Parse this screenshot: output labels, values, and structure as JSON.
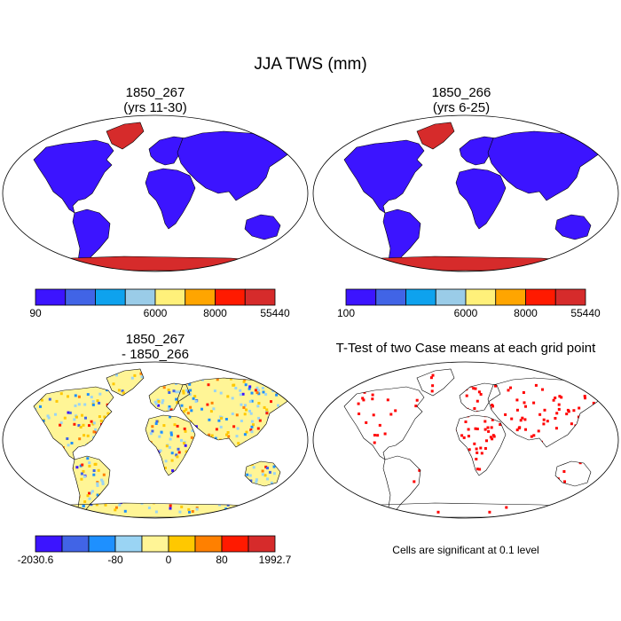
{
  "title": "JJA TWS (mm)",
  "panels": [
    {
      "id": "p1",
      "title_line1": "1850_267",
      "title_line2": "(yrs 11-30)",
      "colorbar": {
        "colors": [
          "#3c14ff",
          "#4164e6",
          "#0ea2ee",
          "#9acce8",
          "#fff07a",
          "#ffa500",
          "#ff1a00",
          "#d62b2b"
        ],
        "tick_labels": [
          "90",
          "6000",
          "8000",
          "55440"
        ]
      }
    },
    {
      "id": "p2",
      "title_line1": "1850_266",
      "title_line2": "(yrs 6-25)",
      "colorbar": {
        "colors": [
          "#3c14ff",
          "#4164e6",
          "#0ea2ee",
          "#9acce8",
          "#fff07a",
          "#ffa500",
          "#ff1a00",
          "#d62b2b"
        ],
        "tick_labels": [
          "100",
          "6000",
          "8000",
          "55440"
        ]
      }
    },
    {
      "id": "p3",
      "title_line1": "1850_267",
      "title_line2": "- 1850_266",
      "colorbar": {
        "colors": [
          "#3c14ff",
          "#4164e6",
          "#1e90ff",
          "#9ad4f4",
          "#fff596",
          "#ffc800",
          "#ff8000",
          "#ff1a00",
          "#d62b2b"
        ],
        "tick_labels": [
          "-2030.6",
          "-80",
          "0",
          "80",
          "1992.7"
        ]
      }
    },
    {
      "id": "p4",
      "title_line1": "T-Test of two Case means at each grid point",
      "note": "Cells are significant at 0.1 level"
    }
  ],
  "colors": {
    "land_blue": "#3c14ff",
    "antarctica_red": "#d62b2b",
    "significant_red": "#ff0000",
    "diff_yellow": "#fff596"
  }
}
